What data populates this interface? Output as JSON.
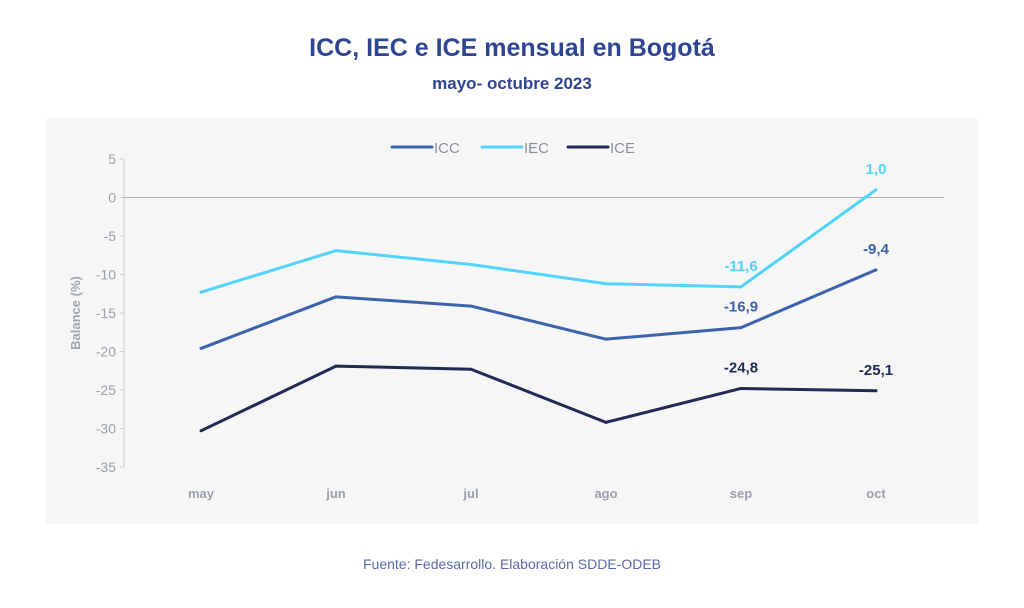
{
  "chart_data": {
    "type": "line",
    "title": "ICC, IEC e ICE mensual en Bogotá",
    "subtitle": "mayo- octubre 2023",
    "xlabel": "",
    "ylabel": "Balance (%)",
    "categories": [
      "may",
      "jun",
      "jul",
      "ago",
      "sep",
      "oct"
    ],
    "ylim": [
      -35,
      5
    ],
    "yticks": [
      5,
      0,
      -5,
      -10,
      -15,
      -20,
      -25,
      -30,
      -35
    ],
    "legend_position": "top",
    "series": [
      {
        "name": "ICC",
        "color": "#3c62ab",
        "values": [
          -19.6,
          -12.9,
          -14.1,
          -18.4,
          -16.9,
          -9.4
        ],
        "labels": {
          "4": "-16,9",
          "5": "-9,4"
        }
      },
      {
        "name": "IEC",
        "color": "#52d3fb",
        "values": [
          -12.3,
          -6.9,
          -8.7,
          -11.2,
          -11.6,
          1.0
        ],
        "labels": {
          "4": "-11,6",
          "5": "1,0"
        }
      },
      {
        "name": "ICE",
        "color": "#1f2a55",
        "values": [
          -30.3,
          -21.9,
          -22.3,
          -29.2,
          -24.8,
          -25.1
        ],
        "labels": {
          "4": "-24,8",
          "5": "-25,1"
        }
      }
    ],
    "source": "Fuente: Fedesarrollo. Elaboración SDDE-ODEB"
  }
}
